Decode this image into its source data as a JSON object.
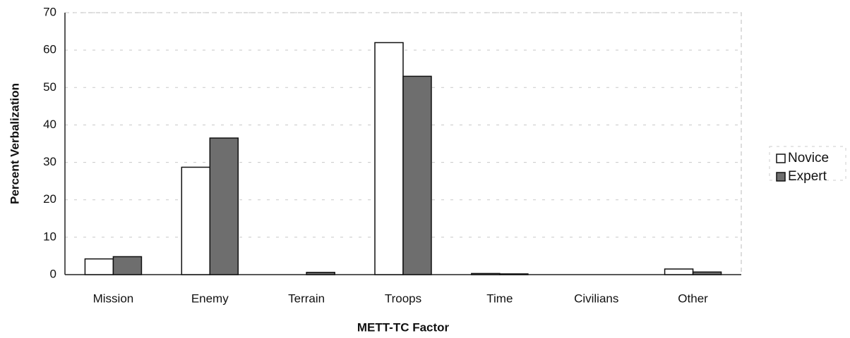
{
  "chart_data": {
    "type": "bar",
    "x_label": "METT-TC Factor",
    "y_label": "Percent Verbalization",
    "categories": [
      "Mission",
      "Enemy",
      "Terrain",
      "Troops",
      "Time",
      "Civilians",
      "Other"
    ],
    "series": [
      {
        "name": "Novice",
        "color": "#ffffff",
        "values": [
          4.2,
          28.7,
          0,
          62,
          0.3,
          0,
          1.5
        ]
      },
      {
        "name": "Expert",
        "color": "#6e6e6e",
        "values": [
          4.8,
          36.5,
          0.6,
          53,
          0.2,
          0,
          0.7
        ]
      }
    ],
    "ylim": [
      0,
      70
    ],
    "yticks": [
      0,
      10,
      20,
      30,
      40,
      50,
      60,
      70
    ],
    "grid": true,
    "legend": "right"
  }
}
